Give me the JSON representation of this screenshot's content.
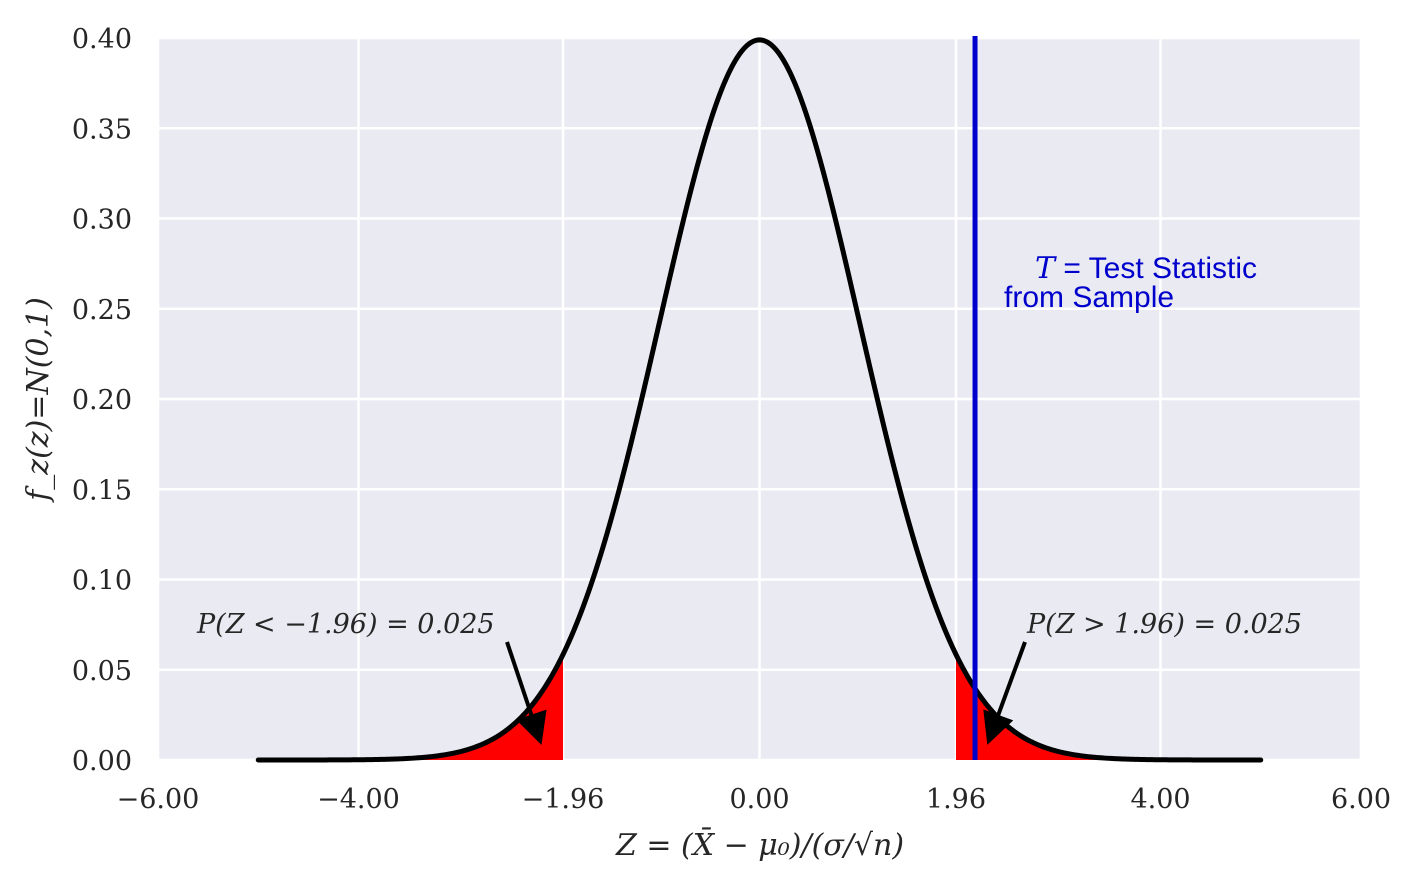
{
  "chart_data": {
    "type": "area",
    "title": "",
    "xlabel": "Z = (X̄ − μ₀)/(σ/√n)",
    "ylabel": "f_z(z)=N(0,1)",
    "xlim": [
      -6,
      6
    ],
    "ylim": [
      0,
      0.4
    ],
    "x_ticks": [
      -6,
      -4,
      -1.96,
      0,
      1.96,
      4,
      6
    ],
    "x_tick_labels": [
      "−6.00",
      "−4.00",
      "−1.96",
      "0.00",
      "1.96",
      "4.00",
      "6.00"
    ],
    "y_ticks": [
      0,
      0.05,
      0.1,
      0.15,
      0.2,
      0.25,
      0.3,
      0.35,
      0.4
    ],
    "y_tick_labels": [
      "0.00",
      "0.05",
      "0.10",
      "0.15",
      "0.20",
      "0.25",
      "0.30",
      "0.35",
      "0.40"
    ],
    "grid": true,
    "background_color": "#eaeaf2",
    "series": [
      {
        "type": "line",
        "color": "#000000",
        "x_range": [
          -5,
          5
        ],
        "x": [
          -5.0,
          -4.5,
          -4.0,
          -3.5,
          -3.0,
          -2.5,
          -2.0,
          -1.96,
          -1.5,
          -1.0,
          -0.5,
          0.0,
          0.5,
          1.0,
          1.5,
          1.96,
          2.0,
          2.5,
          3.0,
          3.5,
          4.0,
          4.5,
          5.0
        ],
        "y": [
          0.0,
          0.0,
          0.0001,
          0.0009,
          0.0044,
          0.0175,
          0.054,
          0.0584,
          0.1295,
          0.242,
          0.3521,
          0.3989,
          0.3521,
          0.242,
          0.1295,
          0.0584,
          0.054,
          0.0175,
          0.0044,
          0.0009,
          0.0001,
          0.0,
          0.0
        ]
      },
      {
        "type": "area",
        "color": "#ff0000",
        "x_range": [
          -5,
          -1.96
        ]
      },
      {
        "type": "area",
        "color": "#ff0000",
        "x_range": [
          1.96,
          5
        ]
      },
      {
        "type": "vline",
        "color": "#0000cc",
        "x": 2.15
      }
    ],
    "annotations": [
      {
        "text": "P(Z < −1.96) = 0.025",
        "arrow_to": [
          -2.2,
          0.007
        ]
      },
      {
        "text": "P(Z > 1.96) = 0.025",
        "arrow_to": [
          2.3,
          0.007
        ]
      }
    ],
    "stat_label": {
      "line1_italic": "T",
      "line1_eq": " = ",
      "line1_text": "Test Statistic",
      "line2": "from Sample"
    }
  }
}
